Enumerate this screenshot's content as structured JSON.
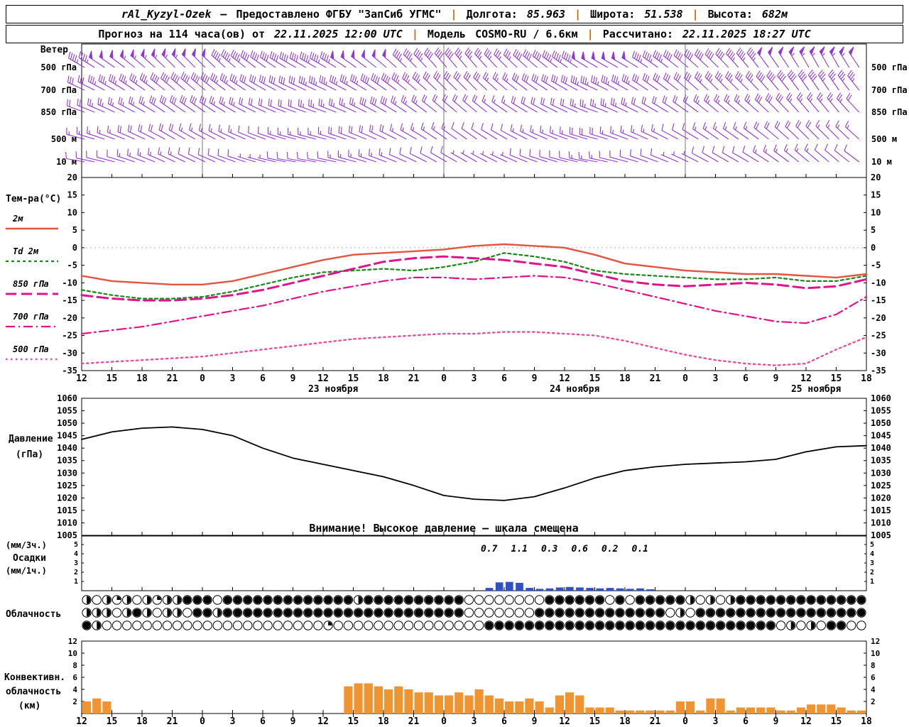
{
  "header": {
    "line1": {
      "station": "rAl_Kyzyl-Ozek",
      "dash": "—",
      "provider": "Предоставлено ФГБУ \"ЗапСиб УГМС\"",
      "sep": "|",
      "lon_label": "Долгота:",
      "lon_value": "85.963",
      "lat_label": "Широта:",
      "lat_value": "51.538",
      "alt_label": "Высота:",
      "alt_value": "682м"
    },
    "line2": {
      "forecast_label": "Прогноз на 114 часа(ов) от",
      "forecast_time": "22.11.2025 12:00 UTC",
      "sep": "|",
      "model_label": "Модель",
      "model_value": "COSMO-RU / 6.6км",
      "calc_label": "Рассчитано:",
      "calc_time": "22.11.2025 18:27 UTC"
    }
  },
  "chart_data": {
    "type": "meteogram",
    "x": {
      "step_hours": 3,
      "hours_span": 78,
      "tick_labels": [
        "12",
        "15",
        "18",
        "21",
        "0",
        "3",
        "6",
        "9",
        "12",
        "15",
        "18",
        "21",
        "0",
        "3",
        "6",
        "9",
        "12",
        "15",
        "18",
        "21",
        "0",
        "3",
        "6",
        "9",
        "12",
        "15",
        "18"
      ],
      "dates": [
        {
          "label": "23 ноября",
          "hour": 25
        },
        {
          "label": "24 ноября",
          "hour": 49
        },
        {
          "label": "25 ноября",
          "hour": 73
        }
      ]
    },
    "wind": {
      "label": "Ветер",
      "color": "#9137d2",
      "levels": [
        {
          "name": "500 гПа",
          "dir": [
            300,
            305,
            310,
            315,
            315,
            310,
            305,
            300,
            300,
            305,
            310,
            315,
            320,
            320,
            315,
            310,
            305,
            300,
            300,
            305,
            310,
            315,
            320,
            325,
            330,
            330,
            325
          ],
          "speed": [
            45,
            50,
            55,
            55,
            50,
            45,
            40,
            40,
            45,
            50,
            50,
            45,
            40,
            35,
            35,
            40,
            45,
            50,
            50,
            45,
            40,
            40,
            45,
            50,
            55,
            55,
            50
          ]
        },
        {
          "name": "700 гПа",
          "dir": [
            295,
            300,
            305,
            310,
            310,
            305,
            300,
            295,
            295,
            300,
            305,
            310,
            315,
            315,
            310,
            305,
            300,
            295,
            300,
            305,
            310,
            315,
            315,
            320,
            325,
            325,
            320
          ],
          "speed": [
            30,
            35,
            35,
            40,
            40,
            35,
            30,
            30,
            35,
            35,
            40,
            35,
            30,
            30,
            25,
            30,
            30,
            35,
            35,
            30,
            30,
            35,
            35,
            40,
            40,
            35,
            35
          ]
        },
        {
          "name": "850 гПа",
          "dir": [
            290,
            295,
            300,
            305,
            305,
            300,
            295,
            290,
            290,
            295,
            300,
            305,
            310,
            310,
            305,
            300,
            295,
            290,
            295,
            300,
            305,
            310,
            310,
            315,
            320,
            320,
            315
          ],
          "speed": [
            20,
            25,
            25,
            30,
            30,
            25,
            20,
            20,
            25,
            25,
            30,
            25,
            20,
            20,
            15,
            20,
            20,
            25,
            25,
            20,
            20,
            25,
            25,
            30,
            25,
            25,
            20
          ]
        },
        {
          "name": "500 м",
          "dir": [
            285,
            290,
            295,
            300,
            300,
            295,
            290,
            285,
            285,
            290,
            295,
            300,
            305,
            305,
            300,
            295,
            290,
            285,
            290,
            295,
            300,
            305,
            305,
            310,
            315,
            315,
            310
          ],
          "speed": [
            15,
            15,
            20,
            20,
            15,
            15,
            10,
            15,
            15,
            20,
            20,
            15,
            15,
            10,
            10,
            15,
            15,
            20,
            15,
            15,
            10,
            15,
            15,
            20,
            20,
            15,
            15
          ]
        },
        {
          "name": "10 м",
          "dir": [
            280,
            285,
            290,
            295,
            295,
            290,
            285,
            280,
            280,
            285,
            290,
            295,
            300,
            300,
            295,
            290,
            285,
            280,
            285,
            290,
            295,
            300,
            300,
            305,
            310,
            310,
            305
          ],
          "speed": [
            10,
            10,
            15,
            15,
            10,
            10,
            5,
            10,
            10,
            15,
            15,
            10,
            10,
            5,
            5,
            10,
            10,
            15,
            10,
            10,
            5,
            10,
            10,
            15,
            15,
            10,
            10
          ]
        }
      ]
    },
    "temperature": {
      "label": "Тем-ра(°C)",
      "ylim": [
        -35,
        20
      ],
      "yticks": [
        20,
        15,
        10,
        5,
        0,
        -5,
        -10,
        -15,
        -20,
        -25,
        -30,
        -35
      ],
      "series": [
        {
          "name": "2м",
          "color": "#e25540",
          "style": "solid",
          "values": [
            -8,
            -9.5,
            -10,
            -10.5,
            -10.5,
            -9.5,
            -7.5,
            -5.5,
            -3.5,
            -2,
            -1.5,
            -1,
            -0.5,
            0.5,
            1,
            0.5,
            0,
            -2,
            -4.5,
            -5.5,
            -6.5,
            -7,
            -7.5,
            -7.5,
            -8,
            -8.5,
            -7.5
          ]
        },
        {
          "name": "Td 2м",
          "color": "#148a14",
          "style": "dash",
          "values": [
            -12,
            -13.5,
            -14.5,
            -14.5,
            -14,
            -12.5,
            -10.5,
            -8.5,
            -7,
            -6.5,
            -6,
            -6.5,
            -5.5,
            -4,
            -1.5,
            -2.5,
            -4,
            -6.5,
            -7.5,
            -8,
            -8.5,
            -9,
            -9,
            -8.5,
            -9.5,
            -9.5,
            -8
          ]
        },
        {
          "name": "850 гПа",
          "color": "#e0138c",
          "style": "longdash",
          "values": [
            -13.5,
            -14.5,
            -15,
            -15,
            -14.5,
            -13.5,
            -12,
            -10,
            -8,
            -6,
            -4,
            -3,
            -2.5,
            -3,
            -3.5,
            -4.5,
            -5.5,
            -7.5,
            -9.5,
            -10.5,
            -11,
            -10.5,
            -10,
            -10.5,
            -11.5,
            -11,
            -9
          ]
        },
        {
          "name": "700 гПа",
          "color": "#e0138c",
          "style": "dashdot",
          "values": [
            -24.5,
            -23.5,
            -22.5,
            -21,
            -19.5,
            -18,
            -16.5,
            -14.5,
            -12.5,
            -11,
            -9.5,
            -8.5,
            -8.5,
            -9,
            -8.5,
            -8,
            -8.5,
            -10,
            -12,
            -14,
            -16,
            -18,
            -19.5,
            -21,
            -21.5,
            -19,
            -14
          ]
        },
        {
          "name": "500 гПа",
          "color": "#e54f9e",
          "style": "dot",
          "values": [
            -33,
            -32.5,
            -32,
            -31.5,
            -31,
            -30,
            -29,
            -28,
            -27,
            -26,
            -25.5,
            -25,
            -24.5,
            -24.5,
            -24,
            -24,
            -24.5,
            -25,
            -26.5,
            -28.5,
            -30.5,
            -32,
            -33,
            -33.5,
            -33,
            -29,
            -25.5
          ]
        }
      ]
    },
    "pressure": {
      "label_1": "Давление",
      "label_2": "(гПа)",
      "color": "#000000",
      "ylim": [
        1005,
        1060
      ],
      "yticks": [
        1060,
        1055,
        1050,
        1045,
        1040,
        1035,
        1030,
        1025,
        1020,
        1015,
        1010,
        1005
      ],
      "warning": "Внимание! Высокое давление — шкала смещена",
      "values": [
        1043.5,
        1046.5,
        1048,
        1048.5,
        1047.5,
        1045,
        1040,
        1036,
        1033.5,
        1031,
        1028.5,
        1025,
        1021,
        1019.5,
        1019,
        1020.5,
        1024,
        1028,
        1031,
        1032.5,
        1033.5,
        1034,
        1034.5,
        1035.5,
        1038.5,
        1040.5,
        1041
      ]
    },
    "precipitation": {
      "labels": [
        "(мм/3ч.)",
        "Осадки",
        "(мм/1ч.)"
      ],
      "color": "#3050c8",
      "yticks": [
        5,
        4,
        3,
        2,
        1
      ],
      "hourly": [
        0,
        0,
        0,
        0,
        0,
        0,
        0,
        0,
        0,
        0,
        0,
        0,
        0,
        0,
        0,
        0,
        0,
        0,
        0,
        0,
        0,
        0,
        0,
        0,
        0,
        0,
        0,
        0,
        0,
        0,
        0,
        0,
        0,
        0,
        0,
        0,
        0,
        0,
        0,
        0,
        0.3,
        0.9,
        0.95,
        0.85,
        0.3,
        0.2,
        0.25,
        0.35,
        0.4,
        0.35,
        0.3,
        0.25,
        0.3,
        0.25,
        0.2,
        0.25,
        0.15,
        0,
        0,
        0,
        0,
        0,
        0,
        0,
        0,
        0,
        0,
        0,
        0,
        0,
        0,
        0,
        0,
        0,
        0,
        0,
        0,
        0
      ],
      "labels_3h": [
        {
          "hour": 40.5,
          "text": "0.7"
        },
        {
          "hour": 43.5,
          "text": "1.1"
        },
        {
          "hour": 46.5,
          "text": "0.3"
        },
        {
          "hour": 49.5,
          "text": "0.6"
        },
        {
          "hour": 52.5,
          "text": "0.2"
        },
        {
          "hour": 55.5,
          "text": "0.1"
        }
      ]
    },
    "cloudiness": {
      "label": "Облачность",
      "rows": [
        "202120212244404444444444444244444444440000000044444404044444202024444444444444",
        "222024202204424444444444444444444444440000000444444444444402044444444444444444",
        "420000000000000000000000100000000000000044444444444444444444444444444020204400"
      ]
    },
    "convective": {
      "labels": [
        "Конвективн.",
        "облачность",
        "(км)"
      ],
      "color": "#ee9430",
      "ylim": [
        0,
        12
      ],
      "yticks": [
        12,
        10,
        8,
        6,
        4,
        2
      ],
      "hourly": [
        2,
        2.5,
        2,
        0,
        0,
        0,
        0,
        0,
        0,
        0,
        0,
        0,
        0,
        0,
        0,
        0,
        0,
        0,
        0,
        0,
        0,
        0,
        0,
        0,
        0,
        0,
        4.5,
        5,
        5,
        4.5,
        4,
        4.5,
        4,
        3.5,
        3.5,
        3,
        3,
        3.5,
        3,
        4,
        3,
        2.5,
        2,
        2,
        2.5,
        2,
        1,
        3,
        3.5,
        3,
        1,
        1,
        1,
        0.5,
        0.5,
        0.5,
        0.5,
        0.5,
        0.5,
        2,
        2,
        0.5,
        2.5,
        2.5,
        0.5,
        1,
        1,
        1,
        1,
        0.5,
        0.5,
        1,
        1.5,
        1.5,
        1.5,
        1,
        0.5,
        0.5
      ]
    }
  }
}
